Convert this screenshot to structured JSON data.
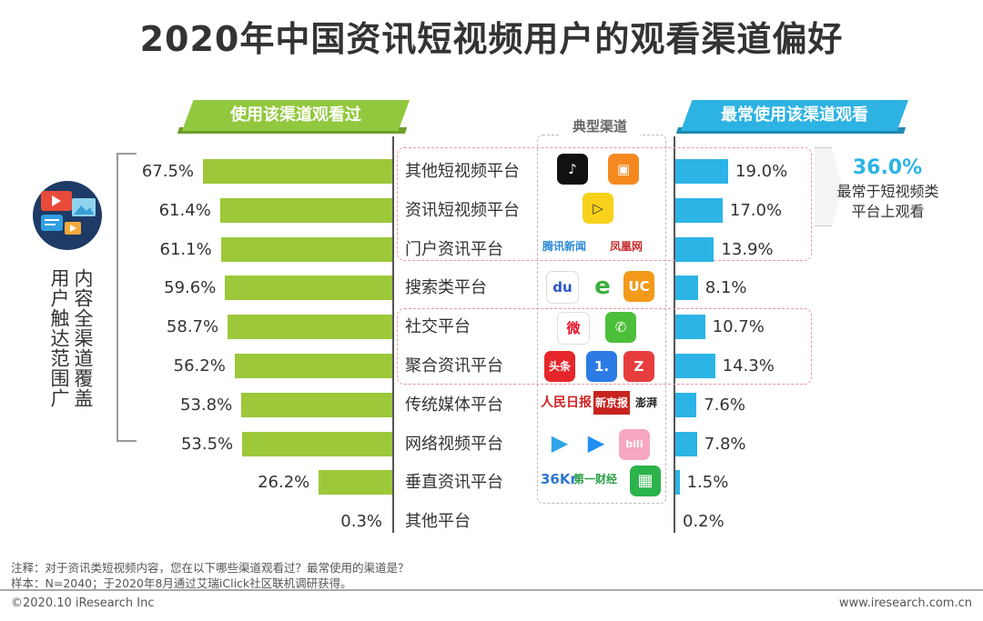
{
  "title": "2020年中国资讯短视频用户的观看渠道偏好",
  "banner_left": "使用该渠道观看过",
  "banner_right": "最常使用该渠道观看",
  "channel_label": "典型渠道",
  "side_label_outer": "用户触达范围广",
  "side_label_inner": "内容全渠道覆盖",
  "callout": {
    "value": "36.0%",
    "text_line1": "最常于短视频类",
    "text_line2": "平台上观看"
  },
  "notes": [
    "注释：对于资讯类短视频内容，您在以下哪些渠道观看过？最常使用的渠道是？",
    "样本：N=2040；于2020年8月通过艾瑞iClick社区联机调研获得。"
  ],
  "footer_left": "©2020.10 iResearch Inc",
  "footer_right": "www.iresearch.com.cn",
  "logos": {
    "douyin": "♪",
    "kuaishou": "▣",
    "pear": "▷",
    "tencent_news": "腾讯新闻",
    "ifeng": "凤凰网",
    "baidu": "du",
    "ie": "e",
    "uc": "UC",
    "weibo": "微",
    "wechat": "✆",
    "toutiao": "头条",
    "yidian": "1.",
    "zaker": "Z",
    "peoples": "人民日报",
    "xjb": "新京报",
    "thepaper": "澎湃",
    "tencent_video": "▶",
    "youku": "▶",
    "bilibili": "bili",
    "kr36": "36Kr",
    "diyi": "第一财经",
    "iqiyi": "▦"
  },
  "colors": {
    "left_bar": "#9cc83a",
    "right_bar": "#2cb4e6",
    "banner_left": "#92c83e",
    "banner_right": "#2cb2e3"
  },
  "chart_data": {
    "type": "bar",
    "categories": [
      "其他短视频平台",
      "资讯短视频平台",
      "门户资讯平台",
      "搜索类平台",
      "社交平台",
      "聚合资讯平台",
      "传统媒体平台",
      "网络视频平台",
      "垂直资讯平台",
      "其他平台"
    ],
    "series": [
      {
        "name": "使用该渠道观看过",
        "values": [
          67.5,
          61.4,
          61.1,
          59.6,
          58.7,
          56.2,
          53.8,
          53.5,
          26.2,
          0.3
        ],
        "labels": [
          "67.5%",
          "61.4%",
          "61.1%",
          "59.6%",
          "58.7%",
          "56.2%",
          "53.8%",
          "53.5%",
          "26.2%",
          "0.3%"
        ]
      },
      {
        "name": "最常使用该渠道观看",
        "values": [
          19.0,
          17.0,
          13.9,
          8.1,
          10.7,
          14.3,
          7.6,
          7.8,
          1.5,
          0.2
        ],
        "labels": [
          "19.0%",
          "17.0%",
          "13.9%",
          "8.1%",
          "10.7%",
          "14.3%",
          "7.6%",
          "7.8%",
          "1.5%",
          "0.2%"
        ]
      }
    ],
    "title": "2020年中国资讯短视频用户的观看渠道偏好"
  }
}
